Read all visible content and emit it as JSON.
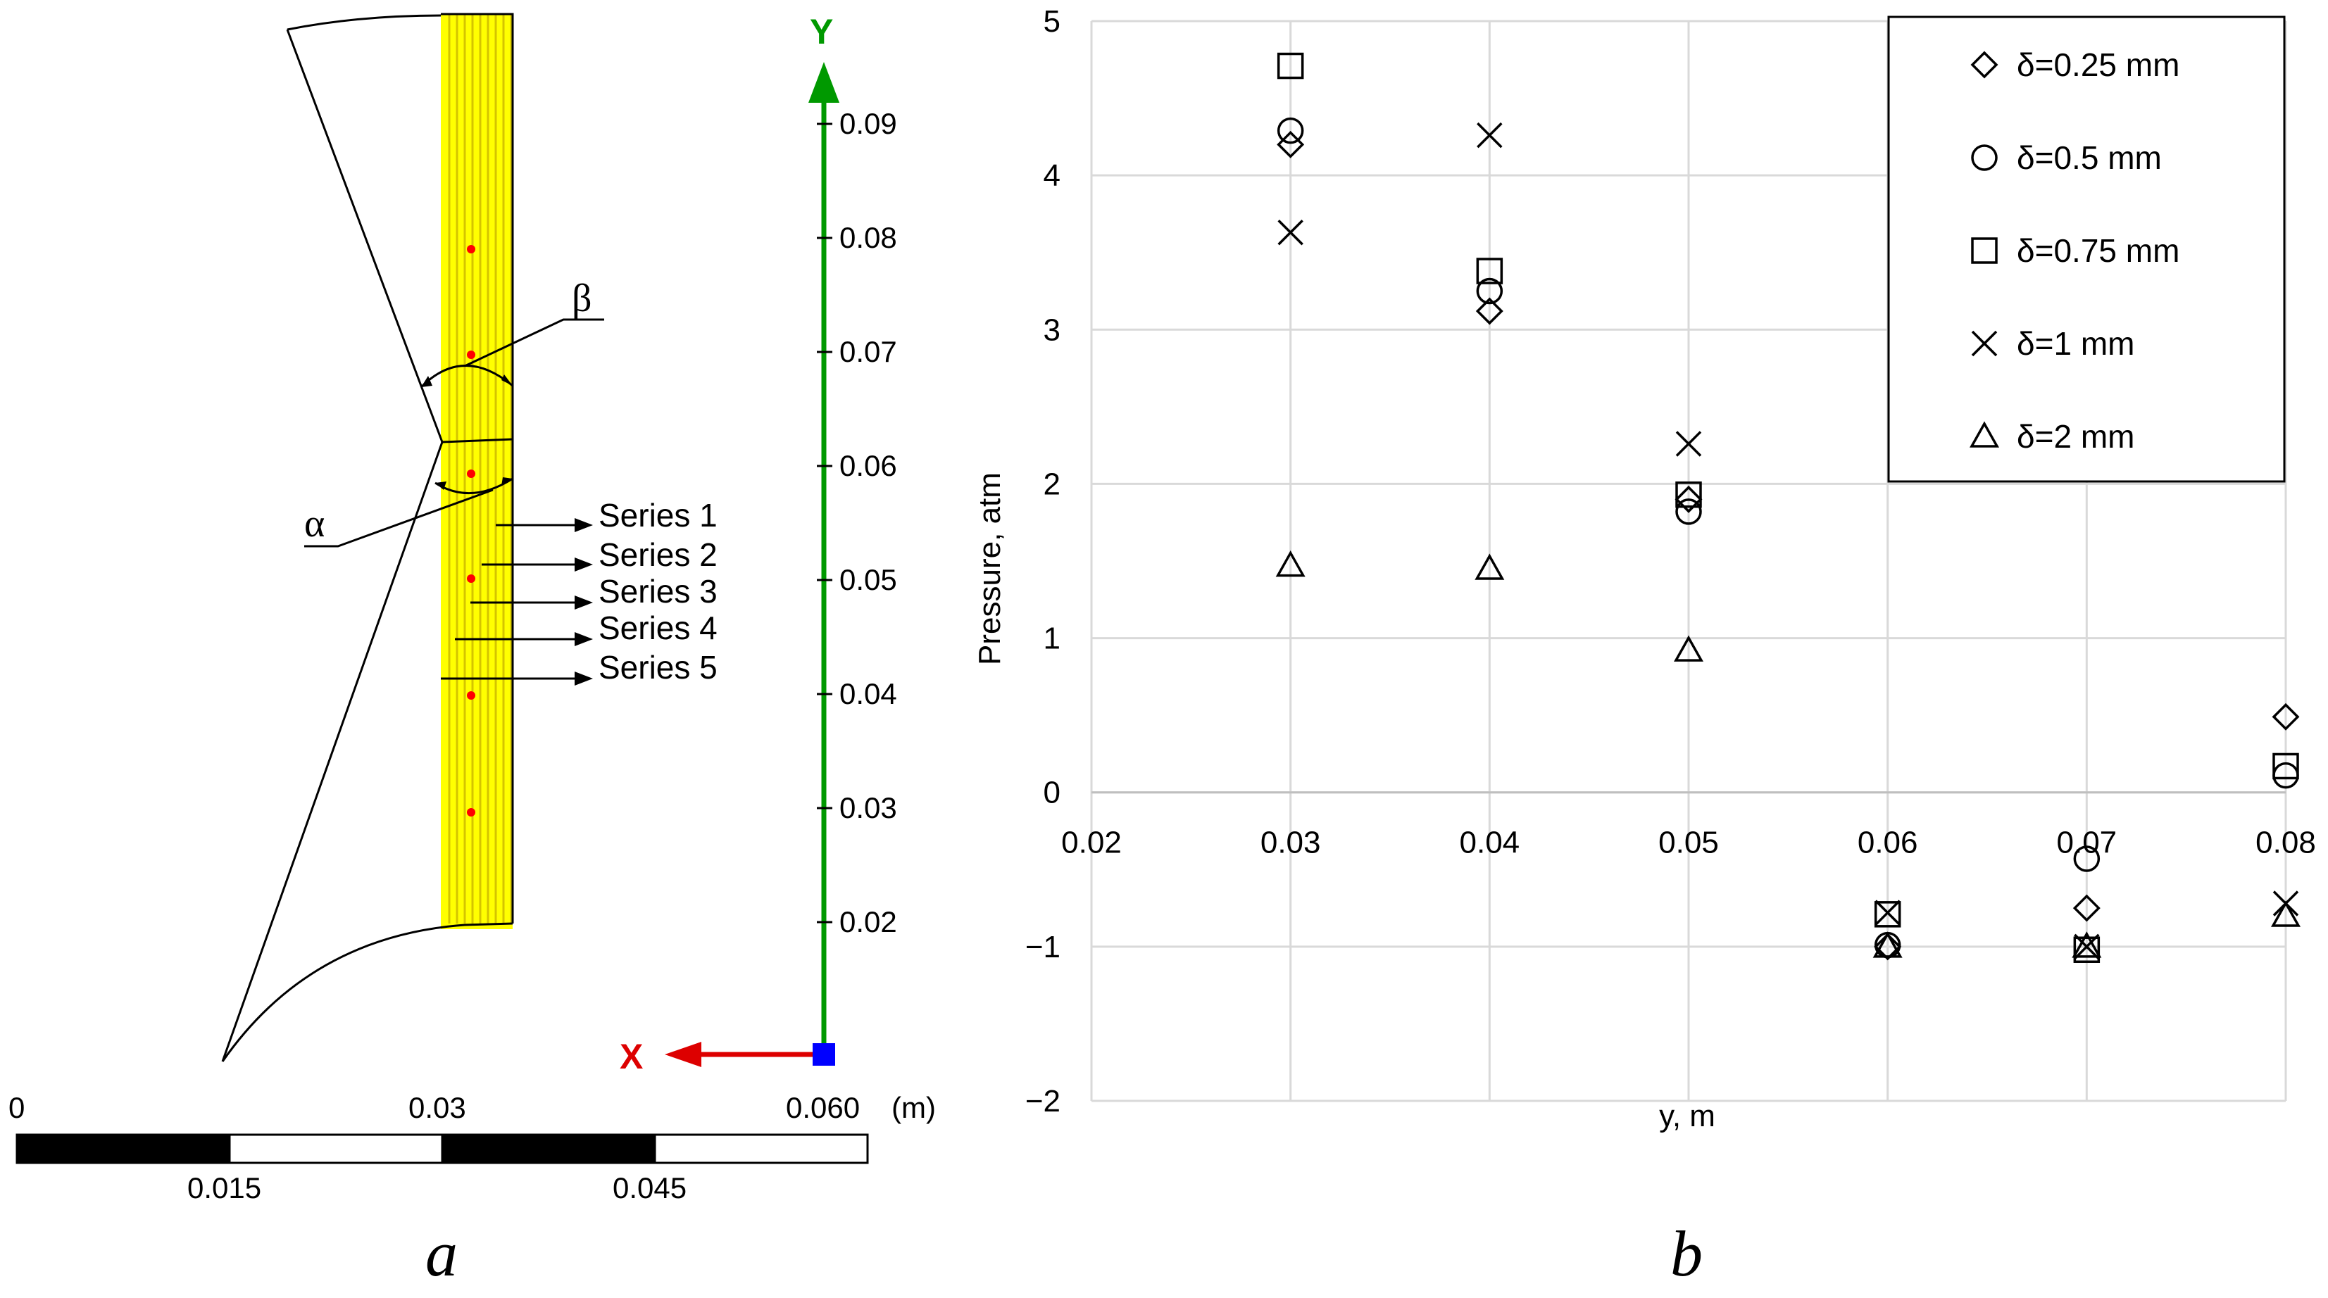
{
  "panel_a": {
    "caption": "a",
    "series_labels": [
      "Series 1",
      "Series 2",
      "Series 3",
      "Series 4",
      "Series 5"
    ],
    "angle_labels": {
      "alpha": "α",
      "beta": "β"
    },
    "y_axis": {
      "label": "Y",
      "ticks": [
        "0.09",
        "0.08",
        "0.07",
        "0.06",
        "0.05",
        "0.04",
        "0.03",
        "0.02"
      ]
    },
    "x_axis_label": "X",
    "scale_bar": {
      "top_labels": [
        "0",
        "0.03",
        "0.060"
      ],
      "unit": "(m)",
      "bottom_labels": [
        "0.015",
        "0.045"
      ]
    },
    "colors": {
      "strip": "#ffff00",
      "strip_line": "#e8e000",
      "points": "#ff0000",
      "y_axis": "#009900",
      "x_axis": "#dd0000",
      "origin": "#0000ff"
    }
  },
  "panel_b": {
    "caption": "b",
    "chart_data": {
      "type": "scatter",
      "title": "",
      "xlabel": "y, m",
      "ylabel": "Pressure, atm",
      "xlim": [
        0.02,
        0.08
      ],
      "ylim": [
        -2,
        5
      ],
      "x_ticks": [
        "0.02",
        "0.03",
        "0.04",
        "0.05",
        "0.06",
        "0.07",
        "0.08"
      ],
      "y_ticks": [
        "−2",
        "−1",
        "0",
        "1",
        "2",
        "3",
        "4",
        "5"
      ],
      "grid": true,
      "legend_position": "top-right",
      "series": [
        {
          "name": "δ=0.25 mm",
          "marker": "diamond",
          "points": [
            [
              0.03,
              4.2
            ],
            [
              0.04,
              3.12
            ],
            [
              0.05,
              1.9
            ],
            [
              0.06,
              -1.0
            ],
            [
              0.07,
              -0.75
            ],
            [
              0.08,
              0.49
            ]
          ]
        },
        {
          "name": "δ=0.5 mm",
          "marker": "circle",
          "points": [
            [
              0.03,
              4.29
            ],
            [
              0.04,
              3.25
            ],
            [
              0.05,
              1.82
            ],
            [
              0.06,
              -0.99
            ],
            [
              0.07,
              -0.43
            ],
            [
              0.08,
              0.11
            ]
          ]
        },
        {
          "name": "δ=0.75 mm",
          "marker": "square",
          "points": [
            [
              0.03,
              4.71
            ],
            [
              0.04,
              3.38
            ],
            [
              0.05,
              1.93
            ],
            [
              0.06,
              -0.79
            ],
            [
              0.07,
              -1.02
            ],
            [
              0.08,
              0.17
            ]
          ]
        },
        {
          "name": "δ=1 mm",
          "marker": "cross",
          "points": [
            [
              0.03,
              3.63
            ],
            [
              0.04,
              4.26
            ],
            [
              0.05,
              2.26
            ],
            [
              0.06,
              -0.78
            ],
            [
              0.07,
              -1.0
            ],
            [
              0.08,
              -0.72
            ]
          ]
        },
        {
          "name": "δ=2 mm",
          "marker": "triangle",
          "points": [
            [
              0.03,
              1.47
            ],
            [
              0.04,
              1.45
            ],
            [
              0.05,
              0.92
            ],
            [
              0.06,
              -1.0
            ],
            [
              0.07,
              -1.0
            ],
            [
              0.08,
              -0.8
            ]
          ]
        }
      ]
    }
  }
}
